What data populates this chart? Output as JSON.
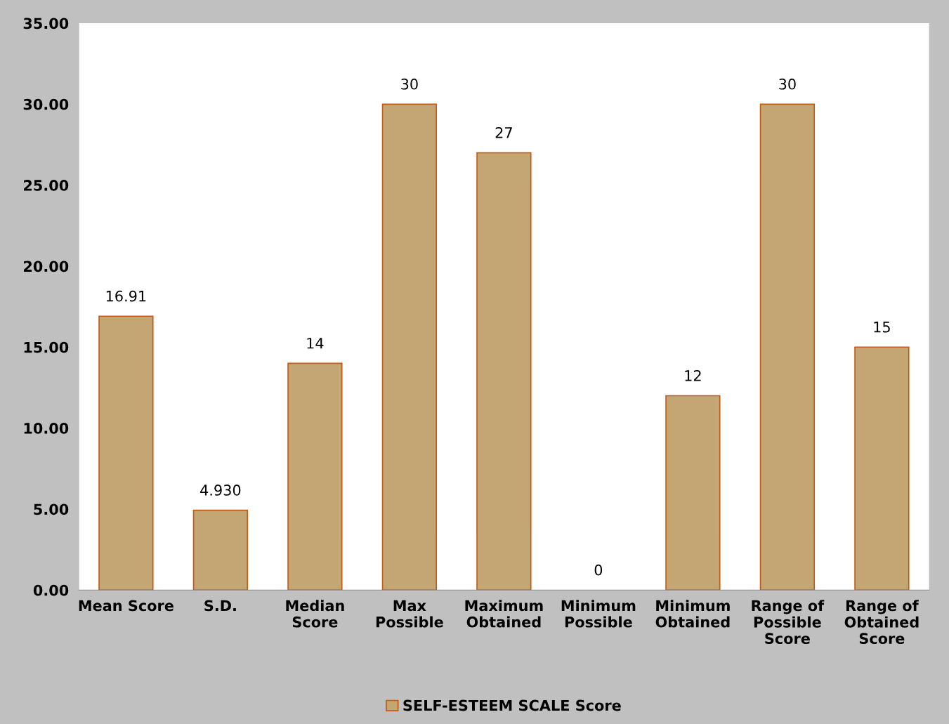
{
  "chart_data": {
    "type": "bar",
    "categories": [
      "Mean Score",
      "S.D.",
      "Median Score",
      "Max Possible",
      "Maximum Obtained",
      "Minimum Possible",
      "Minimum Obtained",
      "Range of Possible Score",
      "Range of Obtained Score"
    ],
    "series": [
      {
        "name": "SELF-ESTEEM SCALE Score",
        "color": "#c4a574",
        "values": [
          16.91,
          4.93,
          14,
          30,
          27,
          0,
          12,
          30,
          15
        ],
        "value_labels": [
          "16.91",
          "4.930",
          "14",
          "30",
          "27",
          "0",
          "12",
          "30",
          "15"
        ]
      }
    ],
    "ylim": [
      0,
      35
    ],
    "yticks": [
      {
        "value": 0,
        "label": "0.00"
      },
      {
        "value": 5,
        "label": "5.00"
      },
      {
        "value": 10,
        "label": "10.00"
      },
      {
        "value": 15,
        "label": "15.00"
      },
      {
        "value": 20,
        "label": "20.00"
      },
      {
        "value": 25,
        "label": "25.00"
      },
      {
        "value": 30,
        "label": "30.00"
      },
      {
        "value": 35,
        "label": "35.00"
      }
    ],
    "grid": false,
    "legend": "bottom"
  }
}
